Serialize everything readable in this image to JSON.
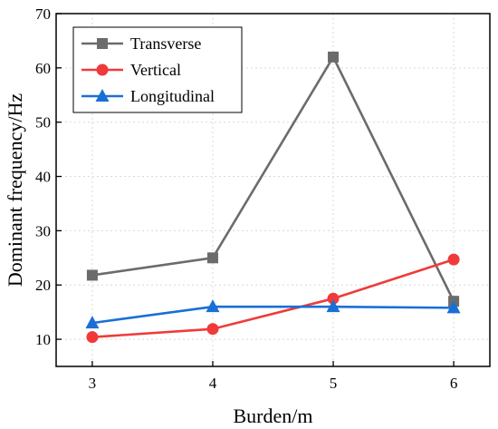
{
  "chart_data": {
    "type": "line",
    "title": "",
    "xlabel": "Burden/m",
    "ylabel": "Dominant frequency/Hz",
    "x": [
      3,
      4,
      5,
      6
    ],
    "xlim": [
      2.7,
      6.3
    ],
    "ylim": [
      5,
      70
    ],
    "xticks": [
      3,
      4,
      5,
      6
    ],
    "yticks": [
      10,
      20,
      30,
      40,
      50,
      60,
      70
    ],
    "grid": true,
    "legend_position": "top-left",
    "series": [
      {
        "name": "Transverse",
        "values": [
          21.8,
          25.0,
          62.0,
          17.0
        ],
        "color": "#6b6b6b",
        "marker": "square"
      },
      {
        "name": "Vertical",
        "values": [
          10.4,
          11.9,
          17.5,
          24.7
        ],
        "color": "#f03a3a",
        "marker": "circle"
      },
      {
        "name": "Longitudinal",
        "values": [
          13.0,
          16.0,
          16.0,
          15.8
        ],
        "color": "#1a6fd6",
        "marker": "triangle"
      }
    ]
  }
}
